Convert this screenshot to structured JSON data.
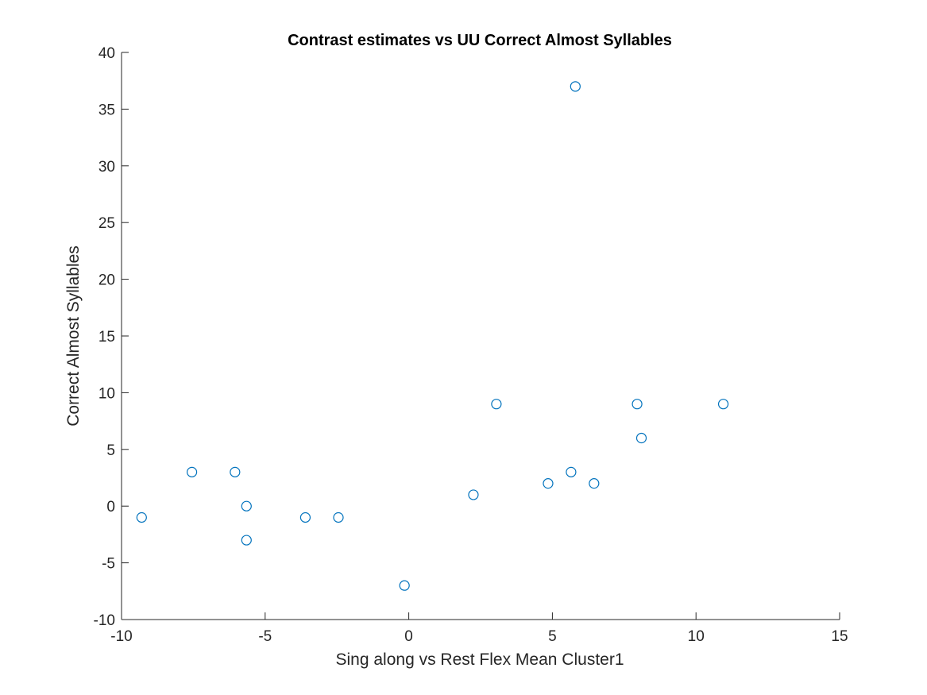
{
  "chart_data": {
    "type": "scatter",
    "title": "Contrast estimates vs UU Correct Almost Syllables",
    "xlabel": "Sing along vs Rest Flex Mean Cluster1",
    "ylabel": "Correct Almost Syllables",
    "xlim": [
      -10,
      15
    ],
    "ylim": [
      -10,
      40
    ],
    "xticks": [
      "-10",
      "-5",
      "0",
      "5",
      "10",
      "15"
    ],
    "yticks": [
      "-10",
      "-5",
      "0",
      "5",
      "10",
      "15",
      "20",
      "25",
      "30",
      "35",
      "40"
    ],
    "marker": "open-circle",
    "marker_color": "#0072BD",
    "grid": false,
    "box": false,
    "points": [
      {
        "x": -9.3,
        "y": -1
      },
      {
        "x": -7.55,
        "y": 3
      },
      {
        "x": -6.05,
        "y": 3
      },
      {
        "x": -5.65,
        "y": 0
      },
      {
        "x": -5.65,
        "y": -3
      },
      {
        "x": -3.6,
        "y": -1
      },
      {
        "x": -2.45,
        "y": -1
      },
      {
        "x": -0.15,
        "y": -7
      },
      {
        "x": 2.25,
        "y": 1
      },
      {
        "x": 3.05,
        "y": 9
      },
      {
        "x": 4.85,
        "y": 2
      },
      {
        "x": 5.65,
        "y": 3
      },
      {
        "x": 5.8,
        "y": 37
      },
      {
        "x": 6.45,
        "y": 2
      },
      {
        "x": 7.95,
        "y": 9
      },
      {
        "x": 8.1,
        "y": 6
      },
      {
        "x": 10.95,
        "y": 9
      }
    ]
  }
}
